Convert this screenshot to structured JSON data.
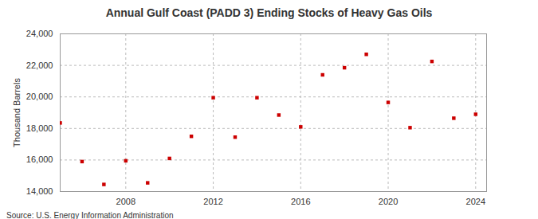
{
  "chart_data": {
    "type": "scatter",
    "title": "Annual Gulf Coast (PADD 3) Ending Stocks of Heavy Gas Oils",
    "y_label": "Thousand Barrels",
    "source": "Source: U.S. Energy Information Administration",
    "x": [
      2005,
      2006,
      2007,
      2008,
      2009,
      2010,
      2011,
      2012,
      2013,
      2014,
      2015,
      2016,
      2017,
      2018,
      2019,
      2020,
      2021,
      2022,
      2023,
      2024
    ],
    "values": [
      18350,
      15900,
      14450,
      15950,
      14550,
      16100,
      17500,
      19950,
      17450,
      19950,
      18850,
      18100,
      21400,
      21850,
      22700,
      19650,
      18050,
      22250,
      18650,
      18900
    ],
    "color": "#cc0000",
    "marker": "square",
    "xlim": [
      2005,
      2024.5
    ],
    "xticks": [
      2008,
      2012,
      2016,
      2020,
      2024
    ],
    "ylim": [
      14000,
      24000
    ],
    "yticks": [
      {
        "value": 14000,
        "label": "14,000"
      },
      {
        "value": 16000,
        "label": "16,000"
      },
      {
        "value": 18000,
        "label": "18,000"
      },
      {
        "value": 20000,
        "label": "20,000"
      },
      {
        "value": 22000,
        "label": "22,000"
      },
      {
        "value": 24000,
        "label": "24,000"
      }
    ],
    "grid": true
  }
}
